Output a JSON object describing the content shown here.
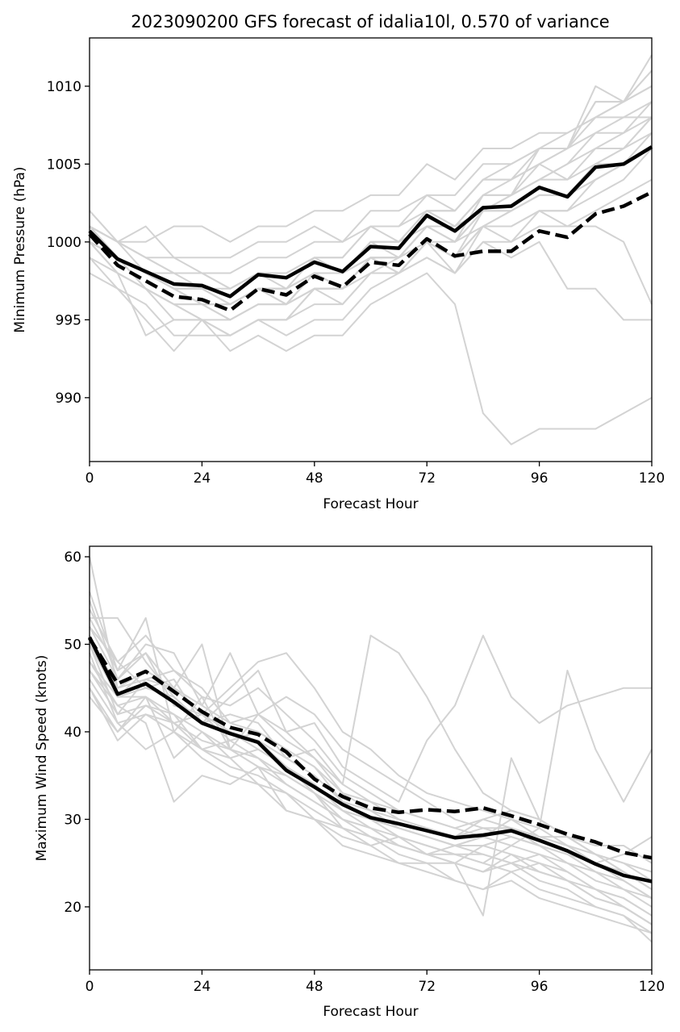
{
  "colors": {
    "members": "#d3d3d3",
    "mean": "#000000"
  },
  "chart_data": [
    {
      "type": "line",
      "title": "2023090200 GFS forecast of idalia10l, 0.570 of variance",
      "xlabel": "Forecast Hour",
      "ylabel": "Minimum Pressure (hPa)",
      "xlim": [
        0,
        120
      ],
      "ylim": [
        985.9,
        1013.1
      ],
      "xticks": [
        0,
        24,
        48,
        72,
        96,
        120
      ],
      "yticks": [
        990,
        995,
        1000,
        1005,
        1010
      ],
      "grid": false,
      "x": [
        0,
        6,
        12,
        18,
        24,
        30,
        36,
        42,
        48,
        54,
        60,
        66,
        72,
        78,
        84,
        90,
        96,
        102,
        108,
        114,
        120
      ],
      "members": [
        [
          1002,
          1000,
          999,
          999,
          998,
          998,
          999,
          999,
          1000,
          1000,
          1001,
          1001,
          1003,
          1002,
          1004,
          1004,
          1006,
          1006,
          1009,
          1009,
          1012
        ],
        [
          1001,
          999,
          998,
          997,
          997,
          996,
          997,
          997,
          998,
          998,
          1000,
          1000,
          1002,
          1001,
          1003,
          1003,
          1004,
          1005,
          1007,
          1007,
          1009
        ],
        [
          1000,
          998,
          997,
          996,
          996,
          995,
          996,
          996,
          997,
          997,
          999,
          999,
          1001,
          1000,
          1002,
          1002,
          1003,
          1003,
          1005,
          1006,
          1008
        ],
        [
          1001,
          999,
          997,
          996,
          995,
          994,
          995,
          995,
          997,
          996,
          998,
          999,
          1001,
          1000,
          1003,
          1004,
          1005,
          1006,
          1008,
          1009,
          1011
        ],
        [
          1002,
          1000,
          1000,
          1001,
          1001,
          1000,
          1001,
          1001,
          1002,
          1002,
          1003,
          1003,
          1005,
          1004,
          1006,
          1006,
          1007,
          1007,
          1008,
          1008,
          1008
        ],
        [
          1000,
          999,
          998,
          997,
          997,
          996,
          997,
          996,
          998,
          997,
          999,
          998,
          1000,
          999,
          1001,
          1001,
          1002,
          1002,
          1004,
          1005,
          1006
        ],
        [
          999,
          998,
          997,
          995,
          995,
          994,
          995,
          994,
          995,
          995,
          997,
          998,
          999,
          998,
          1000,
          1000,
          1001,
          1001,
          1002,
          1003,
          1004
        ],
        [
          1001,
          999,
          998,
          998,
          997,
          997,
          998,
          998,
          999,
          999,
          1001,
          1001,
          1002,
          1002,
          1004,
          1004,
          1005,
          1006,
          1010,
          1009,
          1010
        ],
        [
          1000,
          998,
          997,
          996,
          995,
          995,
          996,
          996,
          997,
          997,
          999,
          998,
          1000,
          999,
          1001,
          1002,
          1003,
          1003,
          1004,
          1005,
          1007
        ],
        [
          1001,
          1000,
          999,
          998,
          998,
          997,
          998,
          997,
          999,
          998,
          1000,
          1000,
          1001,
          1001,
          1003,
          1003,
          1004,
          1005,
          1006,
          1007,
          1008
        ],
        [
          1000,
          999,
          998,
          997,
          996,
          996,
          997,
          997,
          998,
          998,
          1000,
          999,
          1001,
          1001,
          1002,
          1002,
          1003,
          1003,
          1005,
          1005,
          1006
        ],
        [
          1000,
          998,
          994,
          995,
          995,
          994,
          995,
          995,
          997,
          997,
          998,
          998,
          1000,
          999,
          1002,
          1003,
          1006,
          1006,
          1009,
          1009,
          1010
        ],
        [
          1001,
          1000,
          1001,
          999,
          999,
          999,
          1000,
          1000,
          1001,
          1000,
          1002,
          1002,
          1003,
          1003,
          1005,
          1005,
          1006,
          1007,
          1008,
          1009,
          1011
        ],
        [
          999,
          997,
          996,
          994,
          994,
          994,
          995,
          995,
          996,
          996,
          998,
          998,
          999,
          998,
          1001,
          1000,
          1002,
          1002,
          1003,
          1004,
          1006
        ],
        [
          1000,
          999,
          998,
          997,
          997,
          996,
          997,
          997,
          998,
          998,
          1000,
          1000,
          1002,
          1001,
          1003,
          1003,
          1005,
          1004,
          1006,
          1006,
          1007
        ],
        [
          1001,
          999,
          998,
          997,
          996,
          996,
          997,
          996,
          998,
          998,
          999,
          999,
          1001,
          1000,
          1002,
          1003,
          1004,
          1004,
          1005,
          1006,
          1008
        ],
        [
          998,
          997,
          995,
          993,
          995,
          993,
          994,
          993,
          994,
          994,
          996,
          997,
          998,
          996,
          989,
          987,
          988,
          988,
          988,
          989,
          990
        ],
        [
          1000,
          999,
          998,
          997,
          996,
          996,
          997,
          996,
          998,
          997,
          999,
          999,
          1000,
          998,
          1000,
          999,
          1000,
          997,
          997,
          995,
          995
        ],
        [
          1001,
          1000,
          998,
          997,
          997,
          996,
          997,
          997,
          998,
          998,
          999,
          999,
          1000,
          1000,
          1001,
          1001,
          1002,
          1001,
          1001,
          1000,
          996
        ],
        [
          1000,
          999,
          997,
          996,
          996,
          995,
          996,
          996,
          997,
          997,
          999,
          998,
          1000,
          999,
          1001,
          1002,
          1003,
          1003,
          1004,
          1005,
          1006
        ],
        [
          1001,
          1000,
          999,
          998,
          998,
          997,
          998,
          998,
          999,
          999,
          1001,
          1000,
          1002,
          1002,
          1004,
          1005,
          1006,
          1006,
          1007,
          1008,
          1009
        ]
      ],
      "mean_solid": [
        1000.7,
        998.9,
        998.1,
        997.3,
        997.2,
        996.5,
        997.9,
        997.7,
        998.7,
        998.1,
        999.7,
        999.6,
        1001.7,
        1000.7,
        1002.2,
        1002.3,
        1003.5,
        1002.9,
        1004.8,
        1005.0,
        1006.1
      ],
      "mean_dashed": [
        1000.5,
        998.5,
        997.5,
        996.5,
        996.3,
        995.6,
        997.0,
        996.6,
        997.8,
        997.1,
        998.7,
        998.5,
        1000.2,
        999.1,
        999.4,
        999.4,
        1000.7,
        1000.3,
        1001.8,
        1002.3,
        1003.2
      ]
    },
    {
      "type": "line",
      "xlabel": "Forecast Hour",
      "ylabel": "Maximum Wind Speed (knots)",
      "xlim": [
        0,
        120
      ],
      "ylim": [
        12.8,
        61.2
      ],
      "xticks": [
        0,
        24,
        48,
        72,
        96,
        120
      ],
      "yticks": [
        20,
        30,
        40,
        50,
        60
      ],
      "grid": false,
      "x": [
        0,
        6,
        12,
        18,
        24,
        30,
        36,
        42,
        48,
        54,
        60,
        66,
        72,
        78,
        84,
        90,
        96,
        102,
        108,
        114,
        120
      ],
      "members": [
        [
          60,
          45,
          47,
          45,
          42,
          40,
          38,
          36,
          34,
          31,
          29,
          28,
          27,
          26,
          25,
          27,
          29,
          47,
          38,
          32,
          38
        ],
        [
          53,
          53,
          48,
          44,
          41,
          40,
          39,
          37,
          38,
          34,
          51,
          49,
          44,
          38,
          33,
          31,
          30,
          28,
          26,
          24,
          22
        ],
        [
          56,
          47,
          53,
          40,
          44,
          38,
          36,
          34,
          32,
          30,
          29,
          27,
          26,
          27,
          26,
          25,
          24,
          23,
          21,
          20,
          18
        ],
        [
          52,
          48,
          45,
          46,
          41,
          44,
          47,
          40,
          41,
          36,
          34,
          32,
          39,
          43,
          51,
          44,
          41,
          43,
          44,
          45,
          45
        ],
        [
          48,
          44,
          44,
          41,
          42,
          39,
          40,
          38,
          36,
          32,
          31,
          29,
          28,
          27,
          28,
          27,
          26,
          24,
          22,
          21,
          19
        ],
        [
          45,
          40,
          43,
          42,
          38,
          36,
          35,
          33,
          31,
          29,
          28,
          27,
          26,
          25,
          27,
          26,
          25,
          23,
          22,
          20,
          18
        ],
        [
          50,
          42,
          46,
          47,
          45,
          41,
          42,
          40,
          37,
          34,
          32,
          31,
          30,
          29,
          28,
          30,
          28,
          27,
          25,
          23,
          21
        ],
        [
          47,
          43,
          41,
          32,
          35,
          34,
          36,
          31,
          30,
          29,
          28,
          26,
          25,
          23,
          22,
          23,
          21,
          20,
          19,
          18,
          17
        ],
        [
          52,
          46,
          50,
          49,
          43,
          49,
          42,
          39,
          37,
          33,
          32,
          30,
          29,
          28,
          30,
          31,
          30,
          28,
          26,
          25,
          23
        ],
        [
          44,
          40,
          44,
          37,
          40,
          37,
          38,
          36,
          33,
          31,
          30,
          28,
          27,
          26,
          26,
          25,
          23,
          22,
          20,
          19,
          16
        ],
        [
          51,
          44,
          45,
          44,
          41,
          42,
          41,
          37,
          35,
          32,
          30,
          29,
          28,
          27,
          28,
          29,
          27,
          26,
          24,
          22,
          21
        ],
        [
          49,
          41,
          38,
          40,
          38,
          37,
          34,
          33,
          30,
          28,
          27,
          28,
          26,
          25,
          24,
          26,
          24,
          23,
          21,
          20,
          18
        ],
        [
          55,
          46,
          49,
          45,
          50,
          38,
          42,
          44,
          42,
          38,
          36,
          34,
          32,
          30,
          29,
          28,
          27,
          26,
          25,
          26,
          28
        ],
        [
          46,
          41,
          42,
          41,
          38,
          39,
          37,
          35,
          33,
          29,
          27,
          25,
          24,
          23,
          22,
          24,
          22,
          21,
          20,
          19,
          17
        ],
        [
          53,
          47,
          49,
          43,
          42,
          45,
          48,
          49,
          45,
          40,
          38,
          35,
          33,
          32,
          31,
          30,
          29,
          27,
          26,
          24,
          22
        ],
        [
          48,
          43,
          44,
          42,
          40,
          38,
          37,
          34,
          32,
          30,
          29,
          27,
          26,
          25,
          24,
          25,
          26,
          25,
          23,
          22,
          20
        ],
        [
          50,
          44,
          47,
          45,
          42,
          40,
          39,
          36,
          34,
          31,
          30,
          29,
          28,
          27,
          27,
          28,
          27,
          25,
          24,
          23,
          21
        ],
        [
          47,
          42,
          43,
          41,
          39,
          38,
          36,
          35,
          33,
          30,
          28,
          27,
          26,
          26,
          25,
          24,
          25,
          24,
          22,
          21,
          19
        ],
        [
          51,
          45,
          46,
          45,
          43,
          41,
          40,
          38,
          36,
          33,
          31,
          30,
          29,
          28,
          29,
          29,
          28,
          27,
          25,
          24,
          22
        ],
        [
          45,
          39,
          42,
          40,
          37,
          35,
          34,
          31,
          30,
          27,
          26,
          25,
          25,
          25,
          19,
          37,
          30,
          28,
          26,
          25,
          24
        ],
        [
          54,
          48,
          51,
          47,
          44,
          43,
          45,
          42,
          39,
          35,
          33,
          31,
          30,
          29,
          30,
          29,
          28,
          28,
          27,
          27,
          25
        ]
      ],
      "mean_solid": [
        50.8,
        44.3,
        45.5,
        43.4,
        41.0,
        39.8,
        38.8,
        35.6,
        33.7,
        31.7,
        30.2,
        29.5,
        28.7,
        27.9,
        28.2,
        28.7,
        27.6,
        26.4,
        24.9,
        23.6,
        22.9
      ],
      "mean_dashed": [
        50.7,
        45.5,
        46.9,
        44.6,
        42.3,
        40.5,
        39.7,
        37.7,
        34.6,
        32.6,
        31.3,
        30.8,
        31.1,
        30.9,
        31.3,
        30.4,
        29.4,
        28.3,
        27.4,
        26.2,
        25.6
      ]
    }
  ]
}
